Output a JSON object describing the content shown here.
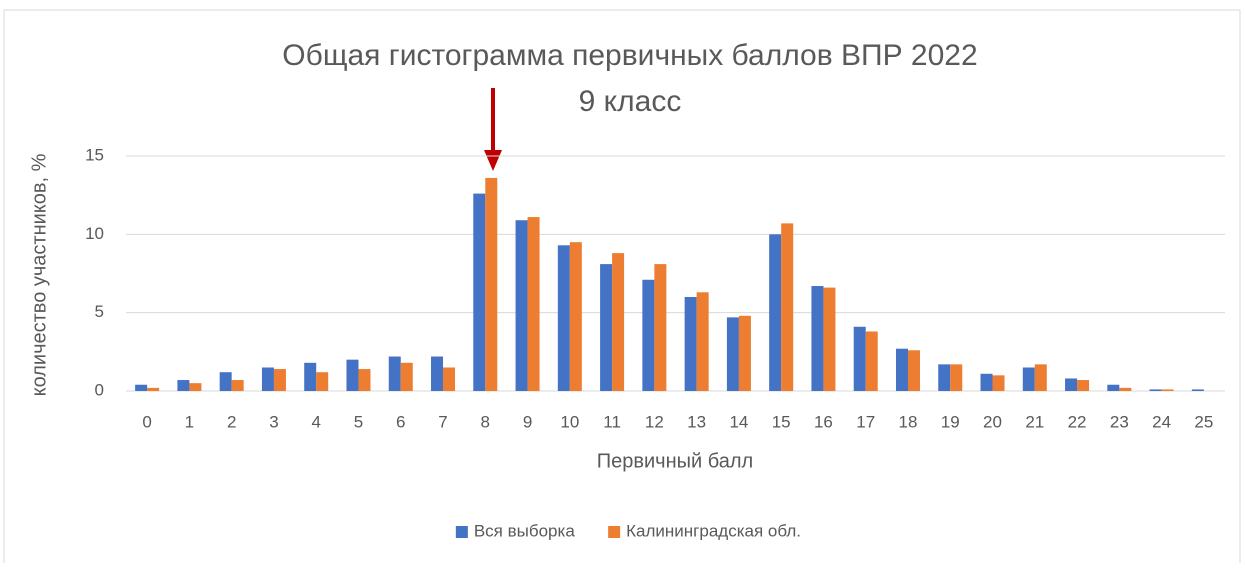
{
  "chart_data": {
    "type": "bar",
    "title": "Общая гистограмма первичных баллов ВПР 2022",
    "subtitle": "9 класс",
    "x_label": "Первичный балл",
    "y_label": "количество участников, %",
    "categories": [
      "0",
      "1",
      "2",
      "3",
      "4",
      "5",
      "6",
      "7",
      "8",
      "9",
      "10",
      "11",
      "12",
      "13",
      "14",
      "15",
      "16",
      "17",
      "18",
      "19",
      "20",
      "21",
      "22",
      "23",
      "24",
      "25"
    ],
    "series": [
      {
        "name": "Вся выборка",
        "color": "#4472c4",
        "values": [
          0.4,
          0.7,
          1.2,
          1.5,
          1.8,
          2.0,
          2.2,
          2.2,
          12.6,
          10.9,
          9.3,
          8.1,
          7.1,
          6.0,
          4.7,
          10.0,
          6.7,
          4.1,
          2.7,
          1.7,
          1.1,
          1.5,
          0.8,
          0.4,
          0.1,
          0.1
        ]
      },
      {
        "name": "Калининградская обл.",
        "color": "#ed7d31",
        "values": [
          0.2,
          0.5,
          0.7,
          1.4,
          1.2,
          1.4,
          1.8,
          1.5,
          13.6,
          11.1,
          9.5,
          8.8,
          8.1,
          6.3,
          4.8,
          10.7,
          6.6,
          3.8,
          2.6,
          1.7,
          1.0,
          1.7,
          0.7,
          0.2,
          0.1,
          0
        ]
      }
    ],
    "ylim": [
      0,
      15
    ],
    "yticks": [
      0,
      5,
      10,
      15
    ],
    "grid": true,
    "legend": "bottom"
  }
}
